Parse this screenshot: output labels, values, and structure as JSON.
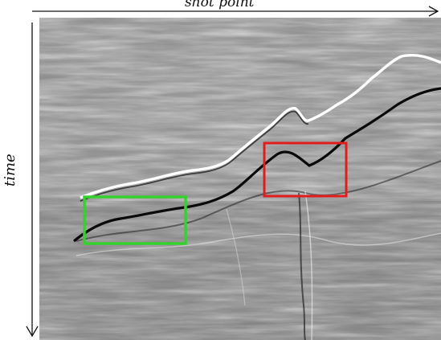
{
  "figure": {
    "x_axis_label": "shot point",
    "y_axis_label": "time",
    "colors": {
      "background": "#ffffff",
      "axis": "#111111",
      "highlight_box_1": "#35d12c",
      "highlight_box_2": "#e21c1c"
    }
  }
}
